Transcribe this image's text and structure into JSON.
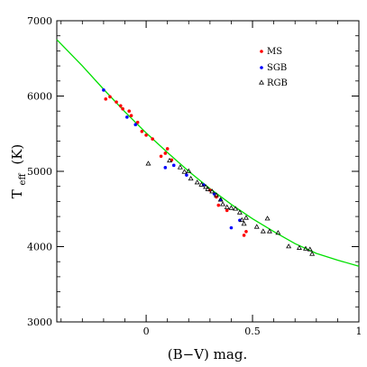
{
  "chart_data": {
    "type": "scatter",
    "title": "",
    "xlabel": "(B−V) mag.",
    "ylabel_main": "T",
    "ylabel_sub": "eff",
    "ylabel_unit": "(K)",
    "xlim": [
      -0.42,
      1.0
    ],
    "ylim": [
      3000,
      7000
    ],
    "x_ticks": [
      {
        "value": 0,
        "label": "0"
      },
      {
        "value": 0.5,
        "label": "0.5"
      },
      {
        "value": 1.0,
        "label": "1"
      }
    ],
    "y_ticks": [
      {
        "value": 3000,
        "label": "3000"
      },
      {
        "value": 4000,
        "label": "4000"
      },
      {
        "value": 5000,
        "label": "5000"
      },
      {
        "value": 6000,
        "label": "6000"
      },
      {
        "value": 7000,
        "label": "7000"
      }
    ],
    "grid": false,
    "legend_position": "top-right",
    "series": [
      {
        "name": "MS",
        "marker": "dot",
        "color": "#ff0000",
        "points": [
          [
            -0.19,
            5960
          ],
          [
            -0.17,
            5990
          ],
          [
            -0.14,
            5920
          ],
          [
            -0.12,
            5870
          ],
          [
            -0.11,
            5830
          ],
          [
            -0.08,
            5800
          ],
          [
            -0.07,
            5740
          ],
          [
            -0.04,
            5650
          ],
          [
            -0.02,
            5530
          ],
          [
            0.0,
            5480
          ],
          [
            0.03,
            5430
          ],
          [
            0.07,
            5200
          ],
          [
            0.09,
            5240
          ],
          [
            0.1,
            5300
          ],
          [
            0.12,
            5150
          ],
          [
            0.3,
            4750
          ],
          [
            0.33,
            4660
          ],
          [
            0.34,
            4550
          ],
          [
            0.38,
            4480
          ],
          [
            0.46,
            4150
          ],
          [
            0.47,
            4200
          ]
        ]
      },
      {
        "name": "SGB",
        "marker": "dot",
        "color": "#0000ff",
        "points": [
          [
            -0.2,
            6080
          ],
          [
            -0.09,
            5720
          ],
          [
            -0.05,
            5620
          ],
          [
            0.09,
            5050
          ],
          [
            0.13,
            5080
          ],
          [
            0.19,
            4950
          ],
          [
            0.27,
            4820
          ],
          [
            0.32,
            4700
          ],
          [
            0.35,
            4620
          ],
          [
            0.4,
            4250
          ],
          [
            0.44,
            4350
          ]
        ]
      },
      {
        "name": "RGB",
        "marker": "triangle",
        "color": "#000000",
        "points": [
          [
            0.01,
            5100
          ],
          [
            0.11,
            5140
          ],
          [
            0.16,
            5050
          ],
          [
            0.18,
            4990
          ],
          [
            0.2,
            5000
          ],
          [
            0.21,
            4900
          ],
          [
            0.24,
            4850
          ],
          [
            0.26,
            4820
          ],
          [
            0.28,
            4790
          ],
          [
            0.29,
            4760
          ],
          [
            0.31,
            4730
          ],
          [
            0.33,
            4680
          ],
          [
            0.35,
            4620
          ],
          [
            0.36,
            4560
          ],
          [
            0.38,
            4520
          ],
          [
            0.4,
            4510
          ],
          [
            0.42,
            4500
          ],
          [
            0.44,
            4450
          ],
          [
            0.45,
            4350
          ],
          [
            0.46,
            4300
          ],
          [
            0.47,
            4380
          ],
          [
            0.52,
            4260
          ],
          [
            0.55,
            4200
          ],
          [
            0.57,
            4370
          ],
          [
            0.58,
            4200
          ],
          [
            0.62,
            4180
          ],
          [
            0.67,
            4000
          ],
          [
            0.72,
            3980
          ],
          [
            0.75,
            3970
          ],
          [
            0.77,
            3960
          ],
          [
            0.78,
            3900
          ]
        ]
      }
    ],
    "fit_curve": {
      "color": "#00e000",
      "points": [
        [
          -0.42,
          6750
        ],
        [
          -0.3,
          6400
        ],
        [
          -0.2,
          6090
        ],
        [
          -0.1,
          5790
        ],
        [
          0.0,
          5510
        ],
        [
          0.1,
          5250
        ],
        [
          0.2,
          5000
        ],
        [
          0.3,
          4770
        ],
        [
          0.4,
          4560
        ],
        [
          0.5,
          4370
        ],
        [
          0.6,
          4200
        ],
        [
          0.7,
          4040
        ],
        [
          0.8,
          3910
        ],
        [
          0.9,
          3820
        ],
        [
          1.0,
          3740
        ]
      ]
    }
  }
}
